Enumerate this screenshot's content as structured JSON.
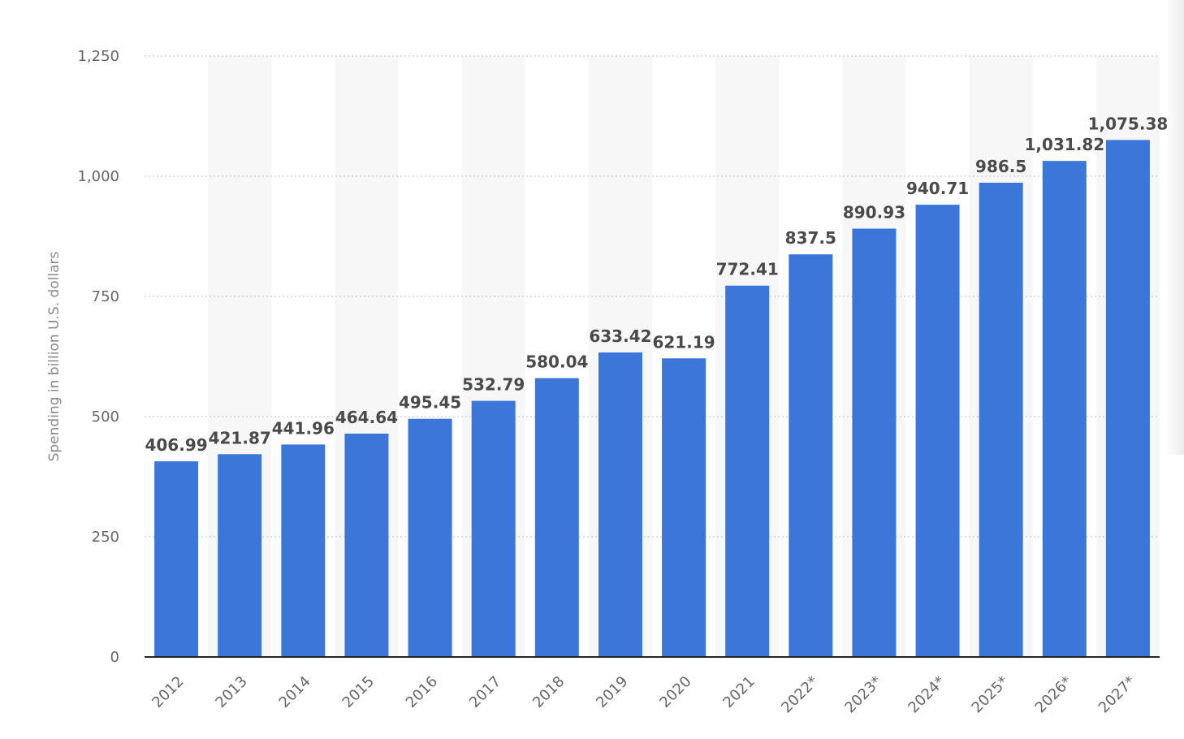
{
  "chart_data": {
    "type": "bar",
    "categories": [
      "2012",
      "2013",
      "2014",
      "2015",
      "2016",
      "2017",
      "2018",
      "2019",
      "2020",
      "2021",
      "2022*",
      "2023*",
      "2024*",
      "2025*",
      "2026*",
      "2027*"
    ],
    "values": [
      406.99,
      421.87,
      441.96,
      464.64,
      495.45,
      532.79,
      580.04,
      633.42,
      621.19,
      772.41,
      837.5,
      890.93,
      940.71,
      986.5,
      1031.82,
      1075.38
    ],
    "value_labels": [
      "406.99",
      "421.87",
      "441.96",
      "464.64",
      "495.45",
      "532.79",
      "580.04",
      "633.42",
      "621.19",
      "772.41",
      "837.5",
      "890.93",
      "940.71",
      "986.5",
      "1,031.82",
      "1,075.38"
    ],
    "ylabel": "Spending in billion U.S. dollars",
    "ylim": [
      0,
      1250
    ],
    "yticks": [
      0,
      250,
      500,
      750,
      1000,
      1250
    ],
    "ytick_labels": [
      "0",
      "250",
      "500",
      "750",
      "1,000",
      "1,250"
    ],
    "grid": true,
    "colors": {
      "bar": "#3c76d8",
      "band": "#f7f7f7",
      "grid": "#c9c9c9",
      "axis": "#222222"
    }
  }
}
